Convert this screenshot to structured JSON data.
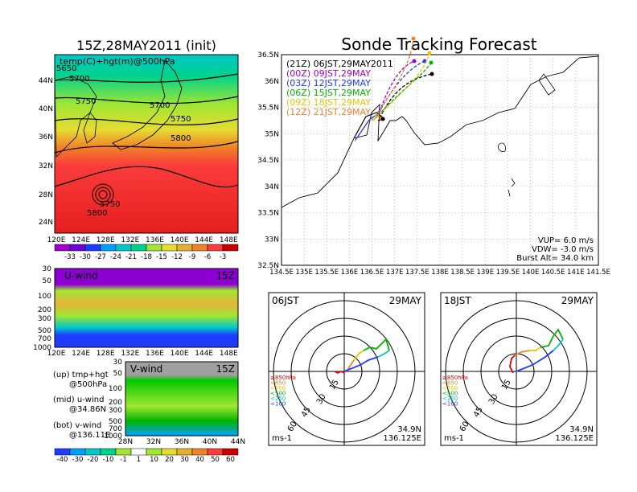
{
  "top_left_title": "15Z,28MAY2011 (init)",
  "right_title": "Sonde Tracking Forecast",
  "map500": {
    "label": "temp(C)+hgt(m)@500hPa",
    "ylabels": [
      "44N",
      "40N",
      "36N",
      "32N",
      "28N",
      "24N"
    ],
    "xlabels": [
      "120E",
      "124E",
      "128E",
      "132E",
      "136E",
      "140E",
      "144E",
      "148E"
    ],
    "contour_labels": [
      "5700",
      "5750",
      "5700",
      "5750",
      "5800",
      "5750",
      "5800",
      "5650"
    ],
    "colorbar_labels": [
      "-33",
      "-30",
      "-27",
      "-24",
      "-21",
      "-18",
      "-15",
      "-12",
      "-9",
      "-6",
      "-3"
    ],
    "colorbar_colors": [
      "#a000c8",
      "#6e00dc",
      "#1e3cff",
      "#00a0ff",
      "#00c8c8",
      "#00d28c",
      "#a0e632",
      "#e6dc32",
      "#e6af2d",
      "#f08228",
      "#fa3c3c",
      "#c80000"
    ]
  },
  "uwind": {
    "label": "U-wind",
    "time": "15Z",
    "ylabels": [
      "30",
      "50",
      "100",
      "200",
      "300",
      "500",
      "700",
      "1000"
    ],
    "xlabels": [
      "120E",
      "124E",
      "128E",
      "132E",
      "136E",
      "140E",
      "144E",
      "148E"
    ]
  },
  "vwind": {
    "label": "V-wind",
    "time": "15Z",
    "ylabels": [
      "30",
      "50",
      "100",
      "200",
      "300",
      "500",
      "700",
      "1000"
    ],
    "xlabels": [
      "28N",
      "32N",
      "36N",
      "40N",
      "44N"
    ]
  },
  "legend_notes": [
    {
      "a": "(up) tmp+hgt",
      "b": "@500hPa"
    },
    {
      "a": "(mid) u-wind",
      "b": "@34.86N"
    },
    {
      "a": "(bot) v-wind",
      "b": "@136.11E"
    }
  ],
  "bottom_colorbar": {
    "labels": [
      "-40",
      "-30",
      "-20",
      "-10",
      "-1",
      "1",
      "10",
      "20",
      "30",
      "40",
      "50",
      "60"
    ],
    "colors": [
      "#1e3cff",
      "#00a0ff",
      "#00c8c8",
      "#00d28c",
      "#a0e632",
      "#ffffff",
      "#a0e632",
      "#e6dc32",
      "#e6af2d",
      "#f08228",
      "#fa3c3c",
      "#c80000"
    ]
  },
  "track_map": {
    "ylabels": [
      "36.5N",
      "36N",
      "35.5N",
      "35N",
      "34.5N",
      "34N",
      "33.5N",
      "33N",
      "32.5N"
    ],
    "xlabels": [
      "134.5E",
      "135E",
      "135.5E",
      "136E",
      "136.5E",
      "137E",
      "137.5E",
      "138E",
      "138.5E",
      "139E",
      "139.5E",
      "140E",
      "140.5E",
      "141E",
      "141.5E"
    ],
    "legend": [
      {
        "text": "(21Z)  06JST,29MAY2011",
        "color": "#000000"
      },
      {
        "text": "(00Z)  09JST,29MAY",
        "color": "#a000c8"
      },
      {
        "text": "(03Z)  12JST,29MAY",
        "color": "#1e3cff"
      },
      {
        "text": "(06Z)  15JST,29MAY",
        "color": "#00b400"
      },
      {
        "text": "(09Z)  18JST,29MAY",
        "color": "#e6c800"
      },
      {
        "text": "(12Z)  21JST,29MAY",
        "color": "#f08228"
      }
    ],
    "params": [
      "VUP=  6.0  m/s",
      "VDW= -3.0  m/s",
      "Burst Alt=  34.0  km"
    ]
  },
  "hodo_left": {
    "time": "06JST",
    "date": "29MAY",
    "rings": [
      "15",
      "30",
      "45",
      "60"
    ],
    "levels": [
      {
        "text": "≥850hPa",
        "color": "#e60000"
      },
      {
        "text": "<850",
        "color": "#f08228"
      },
      {
        "text": "<700",
        "color": "#e6c800"
      },
      {
        "text": "<500",
        "color": "#00b400"
      },
      {
        "text": "<250",
        "color": "#00c8c8"
      },
      {
        "text": "<100",
        "color": "#1e3cff"
      }
    ],
    "unit": "ms-1",
    "lat": "34.9N",
    "lon": "136.125E"
  },
  "hodo_right": {
    "time": "18JST",
    "date": "29MAY",
    "rings": [
      "15",
      "30",
      "45",
      "60"
    ],
    "levels": [
      {
        "text": "≥850hPa",
        "color": "#e60000"
      },
      {
        "text": "<850",
        "color": "#f08228"
      },
      {
        "text": "<700",
        "color": "#e6c800"
      },
      {
        "text": "<500",
        "color": "#00b400"
      },
      {
        "text": "<250",
        "color": "#00c8c8"
      },
      {
        "text": "<100",
        "color": "#1e3cff"
      }
    ],
    "unit": "ms-1",
    "lat": "34.9N",
    "lon": "136.125E"
  }
}
